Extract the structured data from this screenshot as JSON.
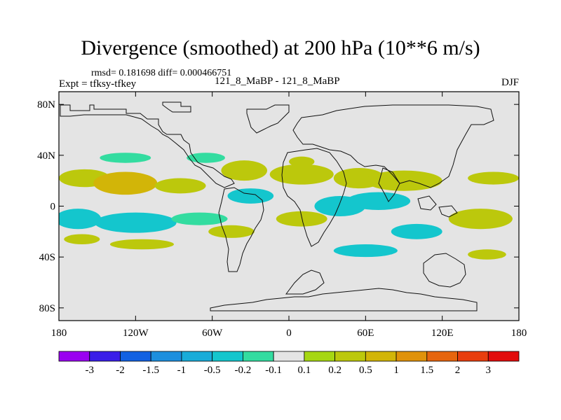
{
  "chart_data": {
    "type": "map_contour",
    "title": "Divergence (smoothed) at 200 hPa (10**6 m/s)",
    "stats_text": "rmsd= 0.181698 diff= 0.000466751",
    "left_label": "Expt = tfksy-tfkey",
    "center_label": "121_8_MaBP - 121_8_MaBP",
    "right_label": "DJF",
    "x_ticks": [
      "180",
      "120W",
      "60W",
      "0",
      "60E",
      "120E",
      "180"
    ],
    "y_ticks": [
      "80N",
      "40N",
      "0",
      "40S",
      "80S"
    ],
    "lon_range": [
      -180,
      180
    ],
    "lat_range": [
      -90,
      90
    ],
    "colorbar": {
      "levels": [
        "-3",
        "-2",
        "-1.5",
        "-1",
        "-0.5",
        "-0.2",
        "-0.1",
        "0.1",
        "0.2",
        "0.5",
        "1",
        "1.5",
        "2",
        "3"
      ],
      "colors": [
        "#9a00f0",
        "#3a1ee8",
        "#1261e2",
        "#1d8fde",
        "#19acd9",
        "#14c6cd",
        "#33dca0",
        "#e4e4e4",
        "#a6d712",
        "#bcc80c",
        "#d2b508",
        "#e0920a",
        "#e6650e",
        "#e83e0e",
        "#e20c0c"
      ]
    },
    "features": [
      {
        "lon": -160,
        "lat": 22,
        "value": 0.3,
        "rlon": 20,
        "rlat": 7
      },
      {
        "lon": -128,
        "lat": 18,
        "value": 0.5,
        "rlon": 25,
        "rlat": 9
      },
      {
        "lon": -85,
        "lat": 16,
        "value": 0.3,
        "rlon": 20,
        "rlat": 6
      },
      {
        "lon": -165,
        "lat": -10,
        "value": -0.3,
        "rlon": 18,
        "rlat": 8
      },
      {
        "lon": -120,
        "lat": -13,
        "value": -0.5,
        "rlon": 32,
        "rlat": 8
      },
      {
        "lon": -70,
        "lat": -10,
        "value": -0.2,
        "rlon": 22,
        "rlat": 5
      },
      {
        "lon": -162,
        "lat": -26,
        "value": 0.2,
        "rlon": 14,
        "rlat": 4
      },
      {
        "lon": -115,
        "lat": -30,
        "value": 0.2,
        "rlon": 25,
        "rlat": 4
      },
      {
        "lon": -128,
        "lat": 38,
        "value": -0.2,
        "rlon": 20,
        "rlat": 4
      },
      {
        "lon": -65,
        "lat": 38,
        "value": -0.2,
        "rlon": 15,
        "rlat": 4
      },
      {
        "lon": -35,
        "lat": 28,
        "value": 0.4,
        "rlon": 18,
        "rlat": 8
      },
      {
        "lon": -30,
        "lat": 8,
        "value": -0.3,
        "rlon": 18,
        "rlat": 6
      },
      {
        "lon": -45,
        "lat": -20,
        "value": 0.3,
        "rlon": 18,
        "rlat": 5
      },
      {
        "lon": 10,
        "lat": 25,
        "value": 0.4,
        "rlon": 25,
        "rlat": 8
      },
      {
        "lon": 10,
        "lat": -10,
        "value": 0.4,
        "rlon": 20,
        "rlat": 6
      },
      {
        "lon": 40,
        "lat": 0,
        "value": -0.4,
        "rlon": 20,
        "rlat": 8
      },
      {
        "lon": 55,
        "lat": 22,
        "value": 0.3,
        "rlon": 20,
        "rlat": 8
      },
      {
        "lon": 90,
        "lat": 20,
        "value": 0.4,
        "rlon": 30,
        "rlat": 8
      },
      {
        "lon": 70,
        "lat": 4,
        "value": -0.4,
        "rlon": 25,
        "rlat": 7
      },
      {
        "lon": 100,
        "lat": -20,
        "value": -0.3,
        "rlon": 20,
        "rlat": 6
      },
      {
        "lon": 60,
        "lat": -35,
        "value": -0.3,
        "rlon": 25,
        "rlat": 5
      },
      {
        "lon": 150,
        "lat": -10,
        "value": 0.3,
        "rlon": 25,
        "rlat": 8
      },
      {
        "lon": 160,
        "lat": 22,
        "value": 0.3,
        "rlon": 20,
        "rlat": 5
      },
      {
        "lon": 155,
        "lat": -38,
        "value": 0.2,
        "rlon": 15,
        "rlat": 4
      },
      {
        "lon": 10,
        "lat": 35,
        "value": 0.2,
        "rlon": 10,
        "rlat": 4
      }
    ]
  }
}
